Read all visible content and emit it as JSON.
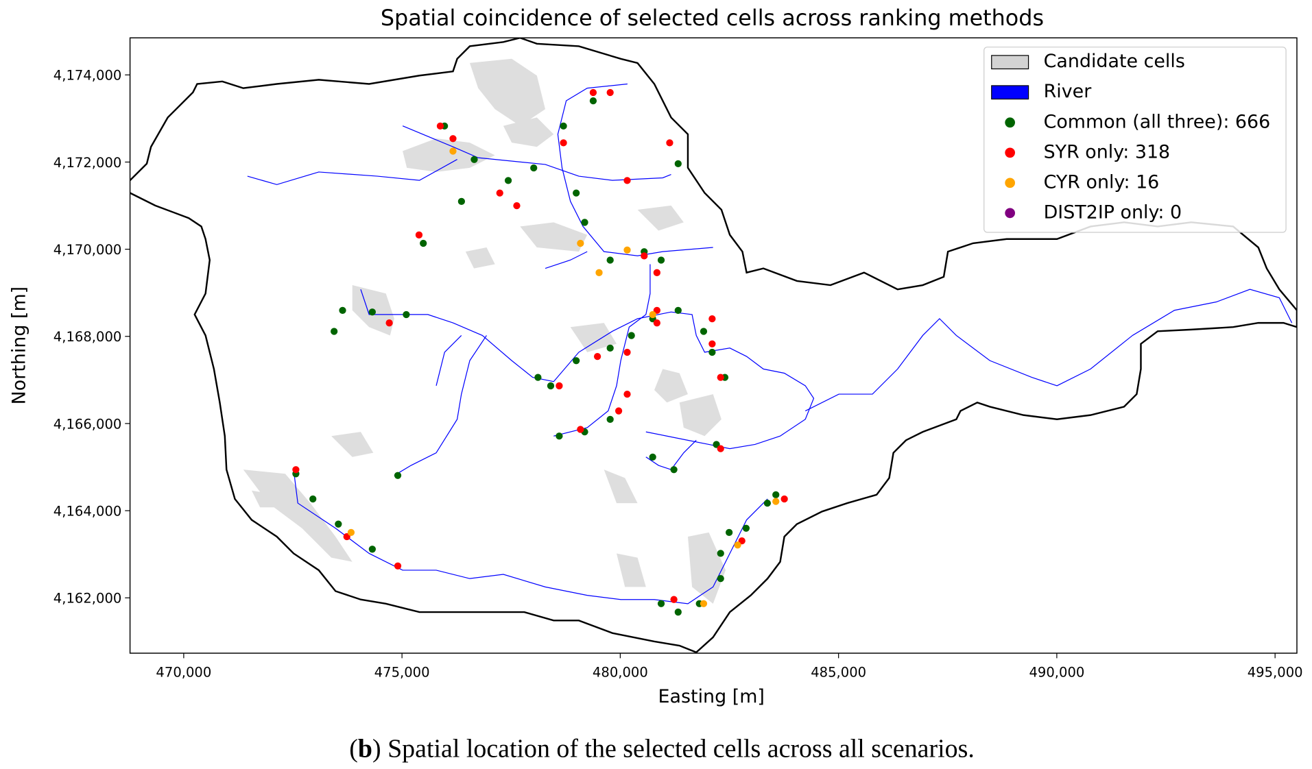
{
  "chart_data": {
    "type": "scatter",
    "title": "Spatial coincidence of selected cells across ranking methods",
    "x_label": "Easting [m]",
    "y_label": "Northing [m]",
    "xlim": [
      468770,
      495500
    ],
    "ylim": [
      4160730,
      4174850
    ],
    "xticks": [
      {
        "value": 470000,
        "label": "470,000"
      },
      {
        "value": 475000,
        "label": "475,000"
      },
      {
        "value": 480000,
        "label": "480,000"
      },
      {
        "value": 485000,
        "label": "485,000"
      },
      {
        "value": 490000,
        "label": "490,000"
      },
      {
        "value": 495000,
        "label": "495,000"
      }
    ],
    "yticks": [
      {
        "value": 4162000,
        "label": "4,162,000"
      },
      {
        "value": 4164000,
        "label": "4,164,000"
      },
      {
        "value": 4166000,
        "label": "4,166,000"
      },
      {
        "value": 4168000,
        "label": "4,168,000"
      },
      {
        "value": 4170000,
        "label": "4,170,000"
      },
      {
        "value": 4172000,
        "label": "4,172,000"
      },
      {
        "value": 4174000,
        "label": "4,174,000"
      }
    ],
    "legend": "upper right",
    "layers": [
      {
        "name": "Candidate cells",
        "color": "#d3d3d3"
      },
      {
        "name": "River",
        "color": "#0000ff"
      }
    ],
    "series": [
      {
        "name": "Common (all three): 666",
        "color": "#006400",
        "x": [
          475974,
          476655,
          477434,
          476363,
          475488,
          478699,
          478991,
          479185,
          479769,
          480548,
          480743,
          480256,
          479769,
          478991,
          478115,
          478407,
          479769,
          479185,
          478602,
          481326,
          481910,
          482105,
          473639,
          474320,
          475098,
          472569,
          472959,
          473542,
          474320,
          480937,
          481326,
          482299,
          482299,
          482883,
          483370,
          483564,
          482202,
          481229,
          480743,
          481326,
          479380,
          478018,
          474904,
          473445,
          480937,
          481812,
          482494,
          482397
        ],
        "y": [
          4172827,
          4172058,
          4171577,
          4171096,
          4170135,
          4172827,
          4171289,
          4170616,
          4169750,
          4169942,
          4168404,
          4168019,
          4167731,
          4167442,
          4167058,
          4166865,
          4166096,
          4165808,
          4165712,
          4168596,
          4168115,
          4167635,
          4168596,
          4168558,
          4168500,
          4164846,
          4164269,
          4163692,
          4163116,
          4161866,
          4161673,
          4162443,
          4163020,
          4163596,
          4164173,
          4164365,
          4165520,
          4164942,
          4165231,
          4171962,
          4173404,
          4171866,
          4164808,
          4168115,
          4169750,
          4161866,
          4163500,
          4167058
        ]
      },
      {
        "name": "SYR only: 318",
        "color": "#ff0000",
        "x": [
          475877,
          477240,
          477629,
          475390,
          479380,
          479769,
          481132,
          480159,
          478699,
          480548,
          480840,
          480840,
          480840,
          480159,
          480159,
          479964,
          479477,
          478602,
          479088,
          482105,
          482105,
          482299,
          472569,
          473737,
          474904,
          474709,
          481229,
          483759,
          482786,
          482299,
          476168
        ],
        "y": [
          4172827,
          4171289,
          4170999,
          4170327,
          4173596,
          4173596,
          4172442,
          4171577,
          4172442,
          4169846,
          4169462,
          4168596,
          4168308,
          4167635,
          4166673,
          4166289,
          4167538,
          4166865,
          4165866,
          4168404,
          4167827,
          4165423,
          4164942,
          4163404,
          4162731,
          4168308,
          4161962,
          4164269,
          4163308,
          4167058,
          4172538
        ]
      },
      {
        "name": "CYR only: 16",
        "color": "#ffa500",
        "x": [
          476168,
          479088,
          480159,
          479515,
          473834,
          481910,
          482689,
          480743,
          483564
        ],
        "y": [
          4172250,
          4170135,
          4169981,
          4169462,
          4163500,
          4161866,
          4163212,
          4168500,
          4164212
        ]
      },
      {
        "name": "DIST2IP only: 0",
        "color": "#800080",
        "x": [],
        "y": []
      }
    ]
  },
  "caption": {
    "open": "(",
    "label": "b",
    "text": ") Spatial location of the selected cells across all scenarios."
  }
}
